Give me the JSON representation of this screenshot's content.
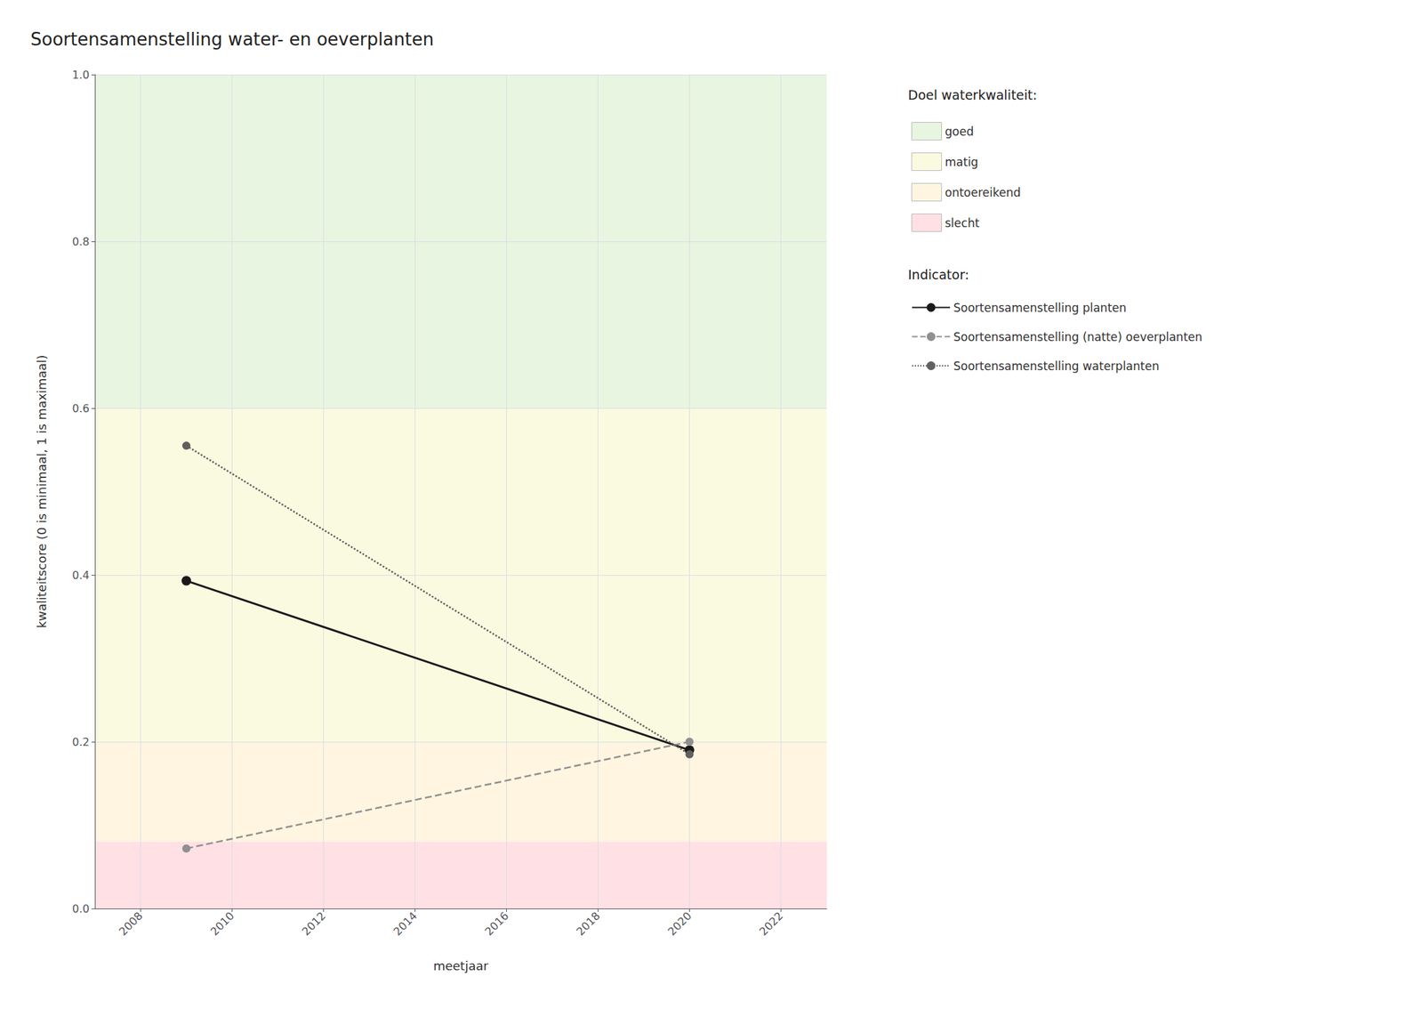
{
  "chart_data": {
    "type": "line",
    "title": "Soortensamenstelling water- en oeverplanten",
    "x_label": "meetjaar",
    "y_label": "kwaliteitscore (0 is minimaal, 1 is maximaal)",
    "x": [
      2009,
      2020
    ],
    "xlim": [
      2007,
      2023
    ],
    "xticks": [
      2008,
      2010,
      2012,
      2014,
      2016,
      2018,
      2020,
      2022
    ],
    "ylim": [
      0.0,
      1.0
    ],
    "yticks": [
      {
        "value": 0,
        "label": "0.0"
      },
      0.2,
      0.4,
      0.6,
      0.8,
      {
        "value": 1,
        "label": "1.0"
      }
    ],
    "grid": true,
    "legend": "right",
    "series": [
      {
        "name": "Soortensamenstelling planten",
        "color": "#1a1a1a",
        "values": [
          0.393,
          0.19
        ],
        "line_style": "solid",
        "marker": "circle"
      },
      {
        "name": "Soortensamenstelling (natte) oeverplanten",
        "color": "#909090",
        "values": [
          0.072,
          0.2
        ],
        "line_style": "dashed",
        "marker": "circle"
      },
      {
        "name": "Soortensamenstelling waterplanten",
        "color": "#606060",
        "values": [
          0.555,
          0.185
        ],
        "line_style": "dotted",
        "marker": "circle"
      }
    ],
    "bands": [
      {
        "name": "goed",
        "from": 0.6,
        "to": 1.0,
        "color": "#e8f5e0"
      },
      {
        "name": "matig",
        "from": 0.2,
        "to": 0.6,
        "color": "#fafae0"
      },
      {
        "name": "ontoereikend",
        "from": 0.08,
        "to": 0.2,
        "color": "#fff5e0"
      },
      {
        "name": "slecht",
        "from": 0.0,
        "to": 0.08,
        "color": "#ffe0e5"
      }
    ],
    "band_legend_title": "Doel waterkwaliteit:",
    "series_legend_title": "Indicator:"
  }
}
